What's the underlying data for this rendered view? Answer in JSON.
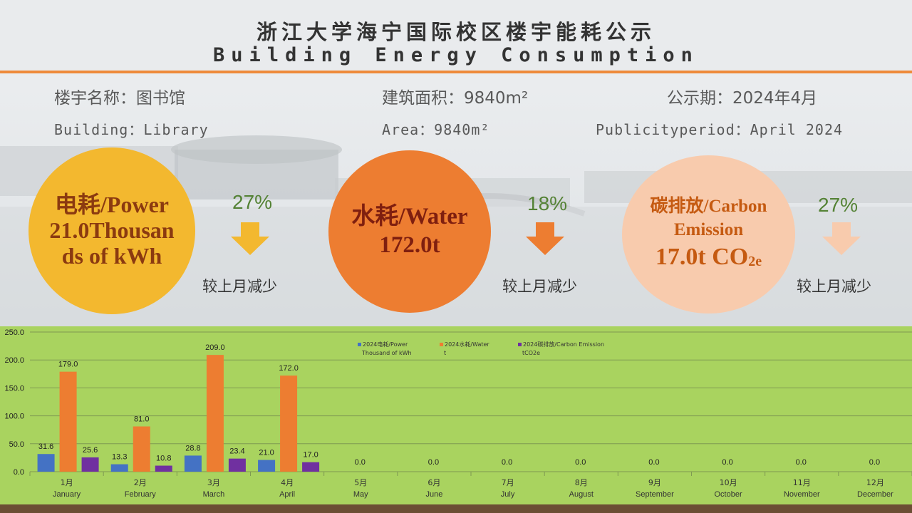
{
  "header": {
    "title_cn": "浙江大学海宁国际校区楼宇能耗公示",
    "title_en": "Building Energy Consumption"
  },
  "info": {
    "building_cn": "楼宇名称：图书馆",
    "area_cn": "建筑面积：9840m²",
    "period_cn": "公示期：2024年4月",
    "building_en": "Building：Library",
    "area_en": "Area：9840m²",
    "period_en": "Publicityperiod：April 2024"
  },
  "kpis": {
    "power": {
      "line1": "电耗/Power",
      "line2": "21.0Thousan",
      "line3": "ds of kWh",
      "change": "27%",
      "change_label": "较上月减少"
    },
    "water": {
      "line1": "水耗/Water",
      "line2": "172.0t",
      "change": "18%",
      "change_label": "较上月减少"
    },
    "carbon": {
      "line1": "碳排放/Carbon",
      "line2": "Emission",
      "line3_main": "17.0t CO",
      "line3_sub": "2e",
      "change": "27%",
      "change_label": "较上月减少"
    }
  },
  "colors": {
    "power": "#4472c4",
    "water": "#ed7d31",
    "carbon": "#7030a0",
    "arrow_power": "#f3b82f",
    "arrow_water": "#ed7d31",
    "arrow_carbon": "#f8cbad",
    "chart_bg": "#a9d35f",
    "accent": "#ee8a3a"
  },
  "chart_data": {
    "type": "bar",
    "categories_cn": [
      "1月",
      "2月",
      "3月",
      "4月",
      "5月",
      "6月",
      "7月",
      "8月",
      "9月",
      "10月",
      "11月",
      "12月"
    ],
    "categories_en": [
      "January",
      "February",
      "March",
      "April",
      "May",
      "June",
      "July",
      "August",
      "September",
      "October",
      "November",
      "December"
    ],
    "ylim": [
      0,
      250
    ],
    "yticks": [
      "0.0",
      "50.0",
      "100.0",
      "150.0",
      "200.0",
      "250.0"
    ],
    "grid": true,
    "legend_position": "top-center",
    "series": [
      {
        "name_line1": "2024电耗/Power",
        "name_line2": "Thousand of kWh",
        "values": [
          31.6,
          13.3,
          28.8,
          21.0,
          null,
          null,
          null,
          null,
          null,
          null,
          null,
          null
        ],
        "labels": [
          "31.6",
          "13.3",
          "28.8",
          "21.0",
          "",
          "",
          "",
          "",
          "",
          "",
          "",
          ""
        ]
      },
      {
        "name_line1": "2024水耗/Water",
        "name_line2": "t",
        "values": [
          179.0,
          81.0,
          209.0,
          172.0,
          null,
          null,
          null,
          null,
          null,
          null,
          null,
          null
        ],
        "labels": [
          "179.0",
          "81.0",
          "209.0",
          "172.0",
          "",
          "",
          "",
          "",
          "",
          "",
          "",
          ""
        ]
      },
      {
        "name_line1": "2024碳排放/Carbon Emission",
        "name_line2": "tCO2e",
        "values": [
          25.6,
          10.8,
          23.4,
          17.0,
          0,
          0,
          0,
          0,
          0,
          0,
          0,
          0
        ],
        "labels": [
          "25.6",
          "10.8",
          "23.4",
          "17.0",
          "0.0",
          "0.0",
          "0.0",
          "0.0",
          "0.0",
          "0.0",
          "0.0",
          "0.0"
        ]
      }
    ]
  }
}
